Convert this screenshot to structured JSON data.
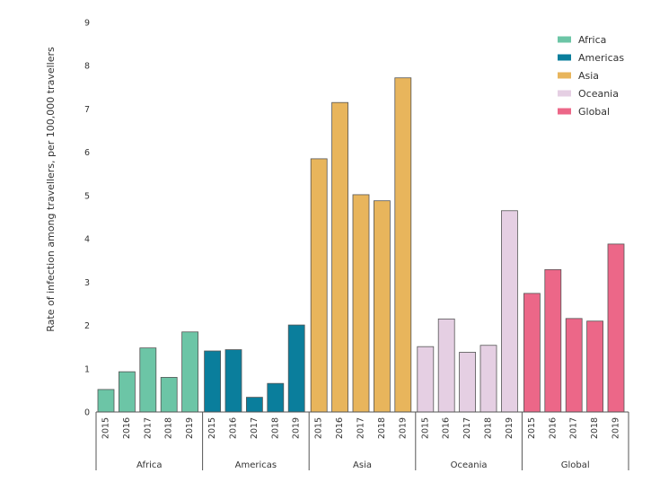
{
  "chart_data": {
    "type": "bar",
    "title": "",
    "ylabel": "Rate of infection among travellers, per 100,000 travellers",
    "xlabel": "",
    "ylim": [
      0,
      9
    ],
    "yticks": [
      "0",
      "1",
      "2",
      "3",
      "4",
      "5",
      "6",
      "7",
      "8",
      "9"
    ],
    "years": [
      "2015",
      "2016",
      "2017",
      "2018",
      "2019"
    ],
    "grid": false,
    "legend_position": "top-right",
    "groups": [
      {
        "name": "Africa",
        "color": "#6CC5A6",
        "values": [
          0.52,
          0.93,
          1.48,
          0.8,
          1.85
        ]
      },
      {
        "name": "Americas",
        "color": "#0A7E9C",
        "values": [
          1.41,
          1.44,
          0.34,
          0.66,
          2.01
        ]
      },
      {
        "name": "Asia",
        "color": "#E8B55C",
        "values": [
          5.85,
          7.15,
          5.02,
          4.88,
          7.72
        ]
      },
      {
        "name": "Oceania",
        "color": "#E5CFE3",
        "values": [
          1.51,
          2.15,
          1.38,
          1.54,
          4.65
        ]
      },
      {
        "name": "Global",
        "color": "#EC6788",
        "values": [
          2.74,
          3.29,
          2.16,
          2.1,
          3.88
        ]
      }
    ]
  }
}
